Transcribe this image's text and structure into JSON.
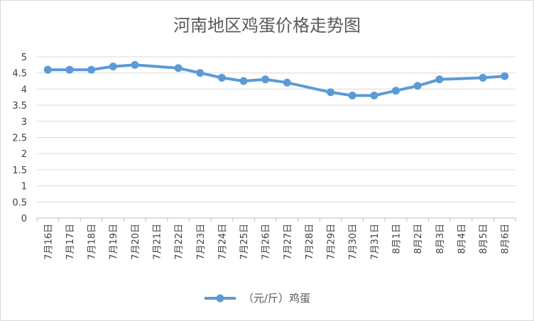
{
  "chart_data": {
    "type": "line",
    "title": "河南地区鸡蛋价格走势图",
    "categories": [
      "7月16日",
      "7月17日",
      "7月18日",
      "7月19日",
      "7月20日",
      "7月21日",
      "7月22日",
      "7月23日",
      "7月24日",
      "7月25日",
      "7月26日",
      "7月27日",
      "7月28日",
      "7月29日",
      "7月30日",
      "7月31日",
      "8月1日",
      "8月2日",
      "8月3日",
      "8月4日",
      "8月5日",
      "8月6日"
    ],
    "series": [
      {
        "name": "（元/斤）鸡蛋",
        "color": "#5b9bd5",
        "values": [
          4.6,
          4.6,
          4.6,
          4.7,
          4.75,
          null,
          4.65,
          4.5,
          4.35,
          4.25,
          4.3,
          4.2,
          null,
          3.9,
          3.8,
          3.8,
          3.95,
          4.1,
          4.3,
          null,
          4.35,
          4.4
        ]
      }
    ],
    "ylim": [
      0,
      5
    ],
    "yticks": [
      "0",
      "0.5",
      "1",
      "1.5",
      "2",
      "2.5",
      "3",
      "3.5",
      "4",
      "4.5",
      "5"
    ],
    "xlabel": "",
    "ylabel": "",
    "grid": true,
    "legend": "bottom"
  }
}
